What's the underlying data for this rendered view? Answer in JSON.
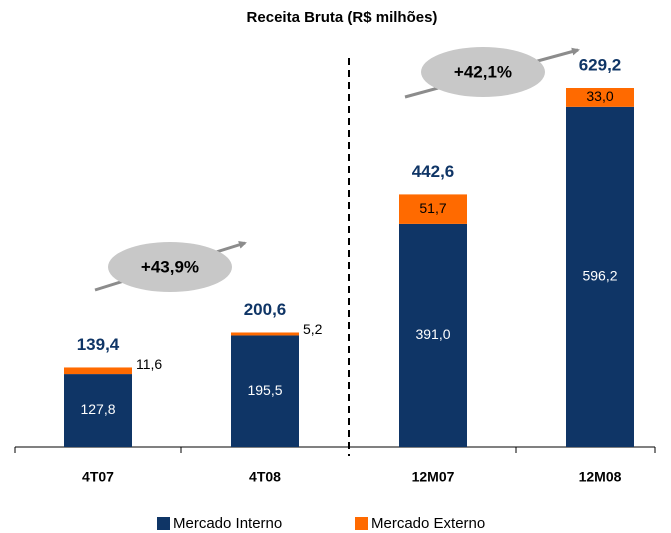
{
  "chart_data": {
    "type": "stacked_bar",
    "title": "Receita Bruta (R$ milhões)",
    "categories": [
      "4T07",
      "4T08",
      "12M07",
      "12M08"
    ],
    "series": [
      {
        "name": "Mercado Interno",
        "color": "#0f3566",
        "values": [
          127.8,
          195.5,
          391.0,
          596.2
        ],
        "value_labels": [
          "127,8",
          "195,5",
          "391,0",
          "596,2"
        ]
      },
      {
        "name": "Mercado Externo",
        "color": "#ff6a00",
        "values": [
          11.6,
          5.2,
          51.7,
          33.0
        ],
        "value_labels": [
          "11,6",
          "5,2",
          "51,7",
          "33,0"
        ]
      }
    ],
    "totals": [
      139.4,
      200.6,
      442.6,
      629.2
    ],
    "total_labels": [
      "139,4",
      "200,6",
      "442,6",
      "629,2"
    ],
    "annotations": [
      "+43,9%",
      "+42,1%"
    ]
  }
}
